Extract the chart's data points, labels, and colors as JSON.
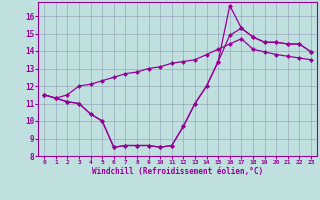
{
  "xlabel": "Windchill (Refroidissement éolien,°C)",
  "bg_color": "#c0e0e0",
  "line_color": "#990099",
  "grid_color": "#99aabb",
  "xlim": [
    -0.5,
    23.5
  ],
  "ylim": [
    8,
    16.8
  ],
  "xticks": [
    0,
    1,
    2,
    3,
    4,
    5,
    6,
    7,
    8,
    9,
    10,
    11,
    12,
    13,
    14,
    15,
    16,
    17,
    18,
    19,
    20,
    21,
    22,
    23
  ],
  "yticks": [
    8,
    9,
    10,
    11,
    12,
    13,
    14,
    15,
    16
  ],
  "line1_x": [
    0,
    1,
    2,
    3,
    4,
    5,
    6,
    7,
    8,
    9,
    10,
    11,
    12,
    13,
    14,
    15,
    16,
    17,
    18,
    19,
    20,
    21,
    22,
    23
  ],
  "line1_y": [
    11.5,
    11.3,
    11.1,
    11.0,
    10.4,
    10.0,
    8.5,
    8.6,
    8.6,
    8.6,
    8.5,
    8.6,
    9.7,
    11.0,
    12.0,
    13.4,
    16.6,
    15.3,
    14.8,
    14.5,
    14.5,
    14.4,
    14.4,
    13.95
  ],
  "line2_x": [
    0,
    1,
    2,
    3,
    4,
    5,
    6,
    7,
    8,
    9,
    10,
    11,
    12,
    13,
    14,
    15,
    16,
    17,
    18,
    19,
    20,
    21,
    22,
    23
  ],
  "line2_y": [
    11.5,
    11.3,
    11.1,
    11.0,
    10.4,
    10.0,
    8.5,
    8.6,
    8.6,
    8.6,
    8.5,
    8.6,
    9.7,
    11.0,
    12.0,
    13.4,
    14.9,
    15.3,
    14.8,
    14.5,
    14.5,
    14.4,
    14.4,
    13.95
  ],
  "line3_x": [
    0,
    1,
    2,
    3,
    4,
    5,
    6,
    7,
    8,
    9,
    10,
    11,
    12,
    13,
    14,
    15,
    16,
    17,
    18,
    19,
    20,
    21,
    22,
    23
  ],
  "line3_y": [
    11.5,
    11.3,
    11.5,
    12.0,
    12.1,
    12.3,
    12.5,
    12.7,
    12.8,
    13.0,
    13.1,
    13.3,
    13.4,
    13.5,
    13.8,
    14.1,
    14.4,
    14.7,
    14.1,
    13.95,
    13.8,
    13.7,
    13.6,
    13.5
  ]
}
